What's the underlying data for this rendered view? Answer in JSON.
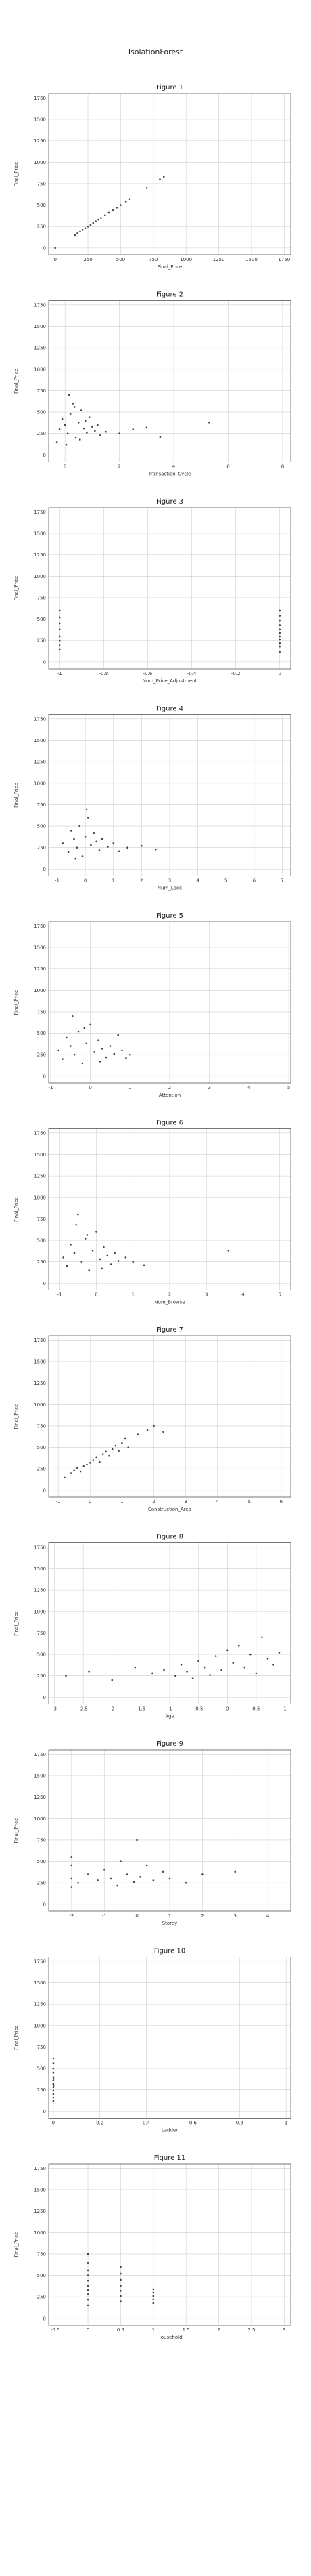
{
  "page": {
    "title": "IsolationForest"
  },
  "colors": {
    "points": "#444444",
    "grid": "#cfcfcf",
    "frame": "#555555"
  },
  "chart_data": [
    {
      "type": "scatter",
      "title": "Figure 1",
      "xlabel": "Final_Price",
      "ylabel": "Final_Price",
      "xlim": [
        -50,
        1800
      ],
      "ylim": [
        -80,
        1800
      ],
      "xticks": [
        0,
        250,
        500,
        750,
        1000,
        1250,
        1500,
        1750
      ],
      "yticks": [
        0,
        250,
        500,
        750,
        1000,
        1250,
        1500,
        1750
      ],
      "points": [
        [
          0,
          0
        ],
        [
          150,
          150
        ],
        [
          170,
          170
        ],
        [
          190,
          190
        ],
        [
          210,
          210
        ],
        [
          230,
          230
        ],
        [
          250,
          250
        ],
        [
          270,
          270
        ],
        [
          290,
          290
        ],
        [
          310,
          310
        ],
        [
          330,
          330
        ],
        [
          350,
          350
        ],
        [
          380,
          380
        ],
        [
          410,
          410
        ],
        [
          440,
          440
        ],
        [
          470,
          470
        ],
        [
          500,
          500
        ],
        [
          540,
          540
        ],
        [
          570,
          570
        ],
        [
          700,
          700
        ],
        [
          800,
          800
        ],
        [
          830,
          830
        ]
      ]
    },
    {
      "type": "scatter",
      "title": "Figure 2",
      "xlabel": "Transaction_Cycle",
      "ylabel": "Final_Price",
      "xlim": [
        -0.6,
        8.3
      ],
      "ylim": [
        -80,
        1800
      ],
      "xticks": [
        0,
        2,
        4,
        6,
        8
      ],
      "yticks": [
        0,
        250,
        500,
        750,
        1000,
        1250,
        1500,
        1750
      ],
      "points": [
        [
          -0.3,
          150
        ],
        [
          -0.2,
          300
        ],
        [
          -0.1,
          420
        ],
        [
          0,
          350
        ],
        [
          0.1,
          250
        ],
        [
          0.2,
          480
        ],
        [
          0.3,
          600
        ],
        [
          0.4,
          200
        ],
        [
          0.5,
          380
        ],
        [
          0.6,
          520
        ],
        [
          0.7,
          310
        ],
        [
          0.8,
          260
        ],
        [
          0.9,
          440
        ],
        [
          1.0,
          330
        ],
        [
          1.1,
          280
        ],
        [
          1.2,
          350
        ],
        [
          1.5,
          270
        ],
        [
          2.0,
          250
        ],
        [
          2.5,
          300
        ],
        [
          3.0,
          320
        ],
        [
          3.5,
          210
        ],
        [
          5.3,
          380
        ],
        [
          0.05,
          120
        ],
        [
          0.15,
          700
        ],
        [
          0.35,
          560
        ],
        [
          0.55,
          180
        ],
        [
          0.75,
          400
        ],
        [
          1.3,
          230
        ]
      ]
    },
    {
      "type": "scatter",
      "title": "Figure 3",
      "xlabel": "Num_Price_Adjustment",
      "ylabel": "Final_Price",
      "xlim": [
        -1.05,
        0.05
      ],
      "ylim": [
        -80,
        1800
      ],
      "xticks": [
        -1.0,
        -0.8,
        -0.6,
        -0.4,
        -0.2,
        0.0
      ],
      "yticks": [
        0,
        250,
        500,
        750,
        1000,
        1250,
        1500,
        1750
      ],
      "points": [
        [
          -1,
          150
        ],
        [
          -1,
          200
        ],
        [
          -1,
          250
        ],
        [
          -1,
          300
        ],
        [
          -1,
          380
        ],
        [
          -1,
          450
        ],
        [
          -1,
          520
        ],
        [
          -1,
          600
        ],
        [
          0,
          120
        ],
        [
          0,
          180
        ],
        [
          0,
          220
        ],
        [
          0,
          260
        ],
        [
          0,
          300
        ],
        [
          0,
          340
        ],
        [
          0,
          380
        ],
        [
          0,
          430
        ],
        [
          0,
          480
        ],
        [
          0,
          540
        ],
        [
          0,
          600
        ]
      ]
    },
    {
      "type": "scatter",
      "title": "Figure 4",
      "xlabel": "Num_Look",
      "ylabel": "Final_Price",
      "xlim": [
        -1.3,
        7.3
      ],
      "ylim": [
        -80,
        1800
      ],
      "xticks": [
        -1,
        0,
        1,
        2,
        3,
        4,
        5,
        6,
        7
      ],
      "yticks": [
        0,
        250,
        500,
        750,
        1000,
        1250,
        1500,
        1750
      ],
      "points": [
        [
          -0.8,
          300
        ],
        [
          -0.6,
          200
        ],
        [
          -0.5,
          450
        ],
        [
          -0.4,
          350
        ],
        [
          -0.3,
          250
        ],
        [
          -0.2,
          500
        ],
        [
          -0.1,
          150
        ],
        [
          0,
          380
        ],
        [
          0.1,
          600
        ],
        [
          0.2,
          280
        ],
        [
          0.3,
          420
        ],
        [
          0.4,
          320
        ],
        [
          0.5,
          220
        ],
        [
          0.6,
          350
        ],
        [
          0.8,
          260
        ],
        [
          1.0,
          300
        ],
        [
          1.2,
          210
        ],
        [
          1.5,
          250
        ],
        [
          2.0,
          270
        ],
        [
          2.5,
          230
        ],
        [
          0.05,
          700
        ],
        [
          -0.35,
          120
        ]
      ]
    },
    {
      "type": "scatter",
      "title": "Figure 5",
      "xlabel": "Attention",
      "ylabel": "Final_Price",
      "xlim": [
        -1.05,
        5.05
      ],
      "ylim": [
        -80,
        1800
      ],
      "xticks": [
        -1,
        0,
        1,
        2,
        3,
        4,
        5
      ],
      "yticks": [
        0,
        250,
        500,
        750,
        1000,
        1250,
        1500,
        1750
      ],
      "points": [
        [
          -0.8,
          300
        ],
        [
          -0.7,
          200
        ],
        [
          -0.6,
          450
        ],
        [
          -0.5,
          350
        ],
        [
          -0.4,
          250
        ],
        [
          -0.3,
          520
        ],
        [
          -0.2,
          150
        ],
        [
          -0.1,
          380
        ],
        [
          0,
          600
        ],
        [
          0.1,
          280
        ],
        [
          0.2,
          420
        ],
        [
          0.3,
          320
        ],
        [
          0.4,
          220
        ],
        [
          0.5,
          350
        ],
        [
          0.6,
          260
        ],
        [
          0.7,
          480
        ],
        [
          0.8,
          300
        ],
        [
          0.9,
          210
        ],
        [
          1.0,
          250
        ],
        [
          -0.45,
          700
        ],
        [
          -0.15,
          560
        ],
        [
          0.25,
          170
        ]
      ]
    },
    {
      "type": "scatter",
      "title": "Figure 6",
      "xlabel": "Num_Browse",
      "ylabel": "Final_Price",
      "xlim": [
        -1.3,
        5.3
      ],
      "ylim": [
        -80,
        1800
      ],
      "xticks": [
        -1,
        0,
        1,
        2,
        3,
        4,
        5
      ],
      "yticks": [
        0,
        250,
        500,
        750,
        1000,
        1250,
        1500,
        1750
      ],
      "points": [
        [
          -0.9,
          300
        ],
        [
          -0.8,
          200
        ],
        [
          -0.7,
          450
        ],
        [
          -0.6,
          350
        ],
        [
          -0.5,
          800
        ],
        [
          -0.4,
          250
        ],
        [
          -0.3,
          520
        ],
        [
          -0.2,
          150
        ],
        [
          -0.1,
          380
        ],
        [
          0,
          600
        ],
        [
          0.1,
          280
        ],
        [
          0.2,
          420
        ],
        [
          0.3,
          320
        ],
        [
          0.4,
          220
        ],
        [
          0.5,
          350
        ],
        [
          0.6,
          260
        ],
        [
          0.8,
          300
        ],
        [
          1.0,
          250
        ],
        [
          1.3,
          210
        ],
        [
          -0.55,
          680
        ],
        [
          -0.25,
          560
        ],
        [
          0.15,
          170
        ],
        [
          3.6,
          380
        ]
      ]
    },
    {
      "type": "scatter",
      "title": "Figure 7",
      "xlabel": "Construction_Area",
      "ylabel": "Final_Price",
      "xlim": [
        -1.3,
        6.3
      ],
      "ylim": [
        -80,
        1800
      ],
      "xticks": [
        -1,
        0,
        1,
        2,
        3,
        4,
        5,
        6
      ],
      "yticks": [
        0,
        250,
        500,
        750,
        1000,
        1250,
        1500,
        1750
      ],
      "points": [
        [
          -0.8,
          150
        ],
        [
          -0.6,
          200
        ],
        [
          -0.5,
          230
        ],
        [
          -0.4,
          260
        ],
        [
          -0.3,
          220
        ],
        [
          -0.2,
          280
        ],
        [
          -0.1,
          300
        ],
        [
          0,
          320
        ],
        [
          0.1,
          350
        ],
        [
          0.2,
          380
        ],
        [
          0.3,
          330
        ],
        [
          0.4,
          420
        ],
        [
          0.5,
          450
        ],
        [
          0.6,
          400
        ],
        [
          0.7,
          480
        ],
        [
          0.8,
          520
        ],
        [
          0.9,
          460
        ],
        [
          1.0,
          550
        ],
        [
          1.1,
          600
        ],
        [
          1.2,
          500
        ],
        [
          1.5,
          650
        ],
        [
          1.8,
          700
        ],
        [
          2.0,
          750
        ],
        [
          2.3,
          680
        ]
      ]
    },
    {
      "type": "scatter",
      "title": "Figure 8",
      "xlabel": "Age",
      "ylabel": "Final_Price",
      "xlim": [
        -3.1,
        1.1
      ],
      "ylim": [
        -80,
        1800
      ],
      "xticks": [
        -3.0,
        -2.5,
        -2.0,
        -1.5,
        -1.0,
        -0.5,
        0.0,
        0.5,
        1.0
      ],
      "yticks": [
        0,
        250,
        500,
        750,
        1000,
        1250,
        1500,
        1750
      ],
      "points": [
        [
          -2.8,
          250
        ],
        [
          -2.4,
          300
        ],
        [
          -2.0,
          200
        ],
        [
          -1.6,
          350
        ],
        [
          -1.3,
          280
        ],
        [
          -1.1,
          320
        ],
        [
          -0.9,
          250
        ],
        [
          -0.8,
          380
        ],
        [
          -0.7,
          300
        ],
        [
          -0.6,
          220
        ],
        [
          -0.5,
          420
        ],
        [
          -0.4,
          350
        ],
        [
          -0.3,
          260
        ],
        [
          -0.2,
          480
        ],
        [
          -0.1,
          320
        ],
        [
          0,
          550
        ],
        [
          0.1,
          400
        ],
        [
          0.2,
          600
        ],
        [
          0.3,
          350
        ],
        [
          0.4,
          500
        ],
        [
          0.5,
          280
        ],
        [
          0.6,
          700
        ],
        [
          0.7,
          450
        ],
        [
          0.8,
          380
        ],
        [
          0.9,
          520
        ]
      ]
    },
    {
      "type": "scatter",
      "title": "Figure 9",
      "xlabel": "Storey",
      "ylabel": "Final_Price",
      "xlim": [
        -2.7,
        4.7
      ],
      "ylim": [
        -80,
        1800
      ],
      "xticks": [
        -2,
        -1,
        0,
        1,
        2,
        3,
        4
      ],
      "yticks": [
        0,
        250,
        500,
        750,
        1000,
        1250,
        1500,
        1750
      ],
      "points": [
        [
          -2.0,
          200
        ],
        [
          -2.0,
          300
        ],
        [
          -2.0,
          450
        ],
        [
          -2.0,
          550
        ],
        [
          -1.8,
          250
        ],
        [
          -1.5,
          350
        ],
        [
          -1.2,
          280
        ],
        [
          -1.0,
          400
        ],
        [
          -0.8,
          300
        ],
        [
          -0.6,
          220
        ],
        [
          -0.5,
          500
        ],
        [
          -0.3,
          350
        ],
        [
          -0.1,
          260
        ],
        [
          0,
          750
        ],
        [
          0.1,
          320
        ],
        [
          0.3,
          450
        ],
        [
          0.5,
          280
        ],
        [
          0.8,
          380
        ],
        [
          1.0,
          300
        ],
        [
          1.5,
          250
        ],
        [
          2.0,
          350
        ],
        [
          3.0,
          380
        ]
      ]
    },
    {
      "type": "scatter",
      "title": "Figure 10",
      "xlabel": "Ladder",
      "ylabel": "Final_Price",
      "xlim": [
        -0.02,
        1.02
      ],
      "ylim": [
        -80,
        1800
      ],
      "xticks": [
        0.0,
        0.2,
        0.4,
        0.6,
        0.8,
        1.0
      ],
      "yticks": [
        0,
        250,
        500,
        750,
        1000,
        1250,
        1500,
        1750
      ],
      "points": [
        [
          0,
          120
        ],
        [
          0,
          160
        ],
        [
          0,
          200
        ],
        [
          0,
          240
        ],
        [
          0,
          280
        ],
        [
          0,
          320
        ],
        [
          0,
          360
        ],
        [
          0,
          400
        ],
        [
          0,
          450
        ],
        [
          0,
          500
        ],
        [
          0,
          560
        ],
        [
          0,
          620
        ],
        [
          0.001,
          300
        ],
        [
          0.001,
          380
        ]
      ]
    },
    {
      "type": "scatter",
      "title": "Figure 11",
      "xlabel": "Household",
      "ylabel": "Final_Price",
      "xlim": [
        -0.6,
        3.1
      ],
      "ylim": [
        -80,
        1800
      ],
      "xticks": [
        -0.5,
        0.0,
        0.5,
        1.0,
        1.5,
        2.0,
        2.5,
        3.0
      ],
      "yticks": [
        0,
        250,
        500,
        750,
        1000,
        1250,
        1500,
        1750
      ],
      "points": [
        [
          0,
          150
        ],
        [
          0,
          220
        ],
        [
          0,
          280
        ],
        [
          0,
          330
        ],
        [
          0,
          380
        ],
        [
          0,
          440
        ],
        [
          0,
          500
        ],
        [
          0,
          560
        ],
        [
          0,
          650
        ],
        [
          0,
          750
        ],
        [
          0.5,
          200
        ],
        [
          0.5,
          260
        ],
        [
          0.5,
          320
        ],
        [
          0.5,
          380
        ],
        [
          0.5,
          450
        ],
        [
          0.5,
          520
        ],
        [
          0.5,
          600
        ],
        [
          1.0,
          180
        ],
        [
          1.0,
          220
        ],
        [
          1.0,
          260
        ],
        [
          1.0,
          300
        ],
        [
          1.0,
          340
        ]
      ]
    }
  ]
}
